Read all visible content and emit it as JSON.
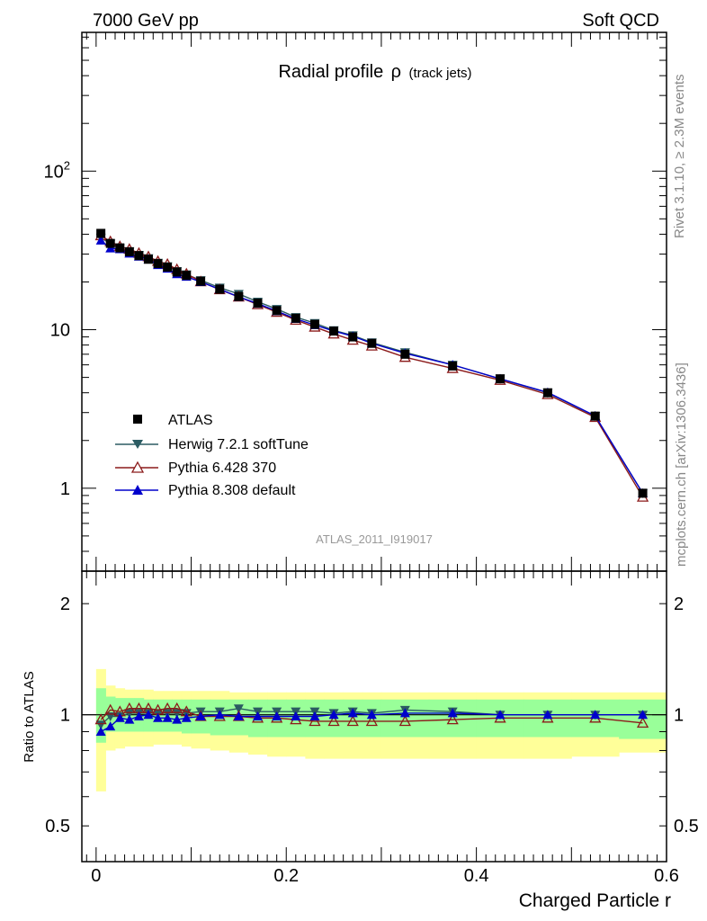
{
  "header": {
    "energy": "7000 GeV pp",
    "category": "Soft QCD"
  },
  "side_text": {
    "rivet": "Rivet 3.1.10, ≥ 2.3M events",
    "source": "mcplots.cern.ch [arXiv:1306.3436]"
  },
  "chart_data": [
    {
      "type": "scatter",
      "title": "Radial profile",
      "title_symbol": "ρ",
      "title_suffix": "(track jets)",
      "analysis": "ATLAS_2011_I919017",
      "yscale": "log",
      "xlim": [
        -0.015,
        0.6
      ],
      "ylim": [
        0.3,
        750
      ],
      "y_ticks": [
        {
          "value": 1,
          "label": "1"
        },
        {
          "value": 10,
          "label": "10"
        },
        {
          "value": 100,
          "label": "10",
          "sup": "2"
        }
      ],
      "x": [
        0.005,
        0.015,
        0.025,
        0.035,
        0.045,
        0.055,
        0.065,
        0.075,
        0.085,
        0.095,
        0.11,
        0.13,
        0.15,
        0.17,
        0.19,
        0.21,
        0.23,
        0.25,
        0.27,
        0.29,
        0.325,
        0.375,
        0.425,
        0.475,
        0.525,
        0.575
      ],
      "series": [
        {
          "name": "ATLAS",
          "marker": "square",
          "color": "#000000",
          "values": [
            40.5,
            35.0,
            32.8,
            31.0,
            29.3,
            27.8,
            26.1,
            24.8,
            23.1,
            22.0,
            20.2,
            18.0,
            16.2,
            14.7,
            13.2,
            11.8,
            10.8,
            9.8,
            9.0,
            8.2,
            7.0,
            5.9,
            4.9,
            4.0,
            2.85,
            0.93
          ]
        },
        {
          "name": "Herwig 7.2.1 softTune",
          "marker": "triangle-down",
          "color": "#2b5b62",
          "values": [
            38.0,
            34.8,
            32.5,
            31.2,
            29.6,
            28.2,
            26.4,
            25.1,
            23.4,
            22.3,
            20.5,
            18.4,
            16.8,
            15.0,
            13.5,
            12.0,
            11.0,
            9.9,
            9.2,
            8.3,
            7.2,
            6.0,
            4.9,
            4.0,
            2.85,
            0.93
          ]
        },
        {
          "name": "Pythia 6.428 370",
          "marker": "triangle-up-open",
          "color": "#8b1a1a",
          "values": [
            39.2,
            36.0,
            33.5,
            32.2,
            30.4,
            28.9,
            27.0,
            25.9,
            24.0,
            22.5,
            20.1,
            17.9,
            16.1,
            14.4,
            12.9,
            11.5,
            10.4,
            9.4,
            8.6,
            7.9,
            6.7,
            5.7,
            4.8,
            3.9,
            2.8,
            0.88
          ]
        },
        {
          "name": "Pythia 8.308 default",
          "marker": "triangle-up",
          "color": "#0000cc",
          "values": [
            36.5,
            32.6,
            32.2,
            30.2,
            28.9,
            27.8,
            25.6,
            24.3,
            22.4,
            21.6,
            20.0,
            18.0,
            16.1,
            14.6,
            13.1,
            11.7,
            10.7,
            9.8,
            9.1,
            8.2,
            7.1,
            6.0,
            4.9,
            4.02,
            2.86,
            0.93
          ]
        }
      ],
      "legend_position": "bottom-left"
    },
    {
      "type": "scatter",
      "title": "",
      "ylabel": "Ratio to ATLAS",
      "xlabel": "Charged Particle r",
      "yscale": "log",
      "xlim": [
        -0.015,
        0.6
      ],
      "ylim": [
        0.4,
        2.45
      ],
      "y_ticks": [
        {
          "value": 0.5,
          "label": "0.5"
        },
        {
          "value": 1,
          "label": "1"
        },
        {
          "value": 2,
          "label": "2"
        }
      ],
      "x_ticks": [
        {
          "value": 0,
          "label": "0"
        },
        {
          "value": 0.2,
          "label": "0.2"
        },
        {
          "value": 0.4,
          "label": "0.4"
        },
        {
          "value": 0.6,
          "label": "0.6"
        }
      ],
      "bin_edges": [
        0.0,
        0.01,
        0.02,
        0.03,
        0.04,
        0.05,
        0.06,
        0.07,
        0.08,
        0.09,
        0.1,
        0.12,
        0.14,
        0.16,
        0.18,
        0.2,
        0.22,
        0.24,
        0.26,
        0.28,
        0.3,
        0.35,
        0.4,
        0.45,
        0.5,
        0.55,
        0.6
      ],
      "band_outer_lo": [
        0.62,
        0.8,
        0.81,
        0.82,
        0.82,
        0.82,
        0.83,
        0.83,
        0.83,
        0.82,
        0.81,
        0.8,
        0.79,
        0.78,
        0.77,
        0.77,
        0.76,
        0.76,
        0.76,
        0.76,
        0.76,
        0.76,
        0.76,
        0.76,
        0.77,
        0.79
      ],
      "band_outer_hi": [
        1.33,
        1.2,
        1.18,
        1.17,
        1.17,
        1.17,
        1.16,
        1.16,
        1.16,
        1.16,
        1.16,
        1.16,
        1.15,
        1.15,
        1.15,
        1.15,
        1.15,
        1.15,
        1.15,
        1.15,
        1.15,
        1.15,
        1.15,
        1.15,
        1.15,
        1.15
      ],
      "band_inner_lo": [
        0.84,
        0.9,
        0.9,
        0.9,
        0.9,
        0.9,
        0.9,
        0.9,
        0.9,
        0.89,
        0.89,
        0.88,
        0.88,
        0.87,
        0.87,
        0.87,
        0.87,
        0.87,
        0.87,
        0.87,
        0.87,
        0.87,
        0.87,
        0.87,
        0.87,
        0.86
      ],
      "band_inner_hi": [
        1.18,
        1.12,
        1.11,
        1.11,
        1.11,
        1.1,
        1.1,
        1.1,
        1.1,
        1.1,
        1.1,
        1.1,
        1.1,
        1.1,
        1.1,
        1.1,
        1.1,
        1.1,
        1.1,
        1.1,
        1.1,
        1.1,
        1.1,
        1.1,
        1.1,
        1.1
      ],
      "band_colors": {
        "outer": "#ffff99",
        "inner": "#99ff99"
      },
      "x": [
        0.005,
        0.015,
        0.025,
        0.035,
        0.045,
        0.055,
        0.065,
        0.075,
        0.085,
        0.095,
        0.11,
        0.13,
        0.15,
        0.17,
        0.19,
        0.21,
        0.23,
        0.25,
        0.27,
        0.29,
        0.325,
        0.375,
        0.425,
        0.475,
        0.525,
        0.575
      ],
      "series": [
        {
          "name": "Herwig 7.2.1 softTune",
          "marker": "triangle-down",
          "color": "#2b5b62",
          "values": [
            0.94,
            0.99,
            0.99,
            1.01,
            1.01,
            1.01,
            1.01,
            1.01,
            1.01,
            1.01,
            1.02,
            1.02,
            1.04,
            1.02,
            1.02,
            1.02,
            1.02,
            1.01,
            1.02,
            1.01,
            1.03,
            1.02,
            1.0,
            1.0,
            1.0,
            1.0
          ]
        },
        {
          "name": "Pythia 6.428 370",
          "marker": "triangle-up-open",
          "color": "#8b1a1a",
          "values": [
            0.97,
            1.03,
            1.02,
            1.04,
            1.04,
            1.04,
            1.03,
            1.04,
            1.04,
            1.02,
            0.99,
            0.99,
            0.99,
            0.98,
            0.98,
            0.97,
            0.96,
            0.96,
            0.96,
            0.96,
            0.96,
            0.97,
            0.98,
            0.98,
            0.98,
            0.95
          ]
        },
        {
          "name": "Pythia 8.308 default",
          "marker": "triangle-up",
          "color": "#0000cc",
          "values": [
            0.9,
            0.93,
            0.98,
            0.97,
            0.99,
            1.0,
            0.98,
            0.98,
            0.97,
            0.98,
            0.99,
            1.0,
            0.99,
            0.99,
            0.99,
            0.99,
            0.99,
            1.0,
            1.01,
            1.0,
            1.01,
            1.01,
            1.0,
            1.0,
            1.0,
            1.0
          ]
        }
      ]
    }
  ]
}
